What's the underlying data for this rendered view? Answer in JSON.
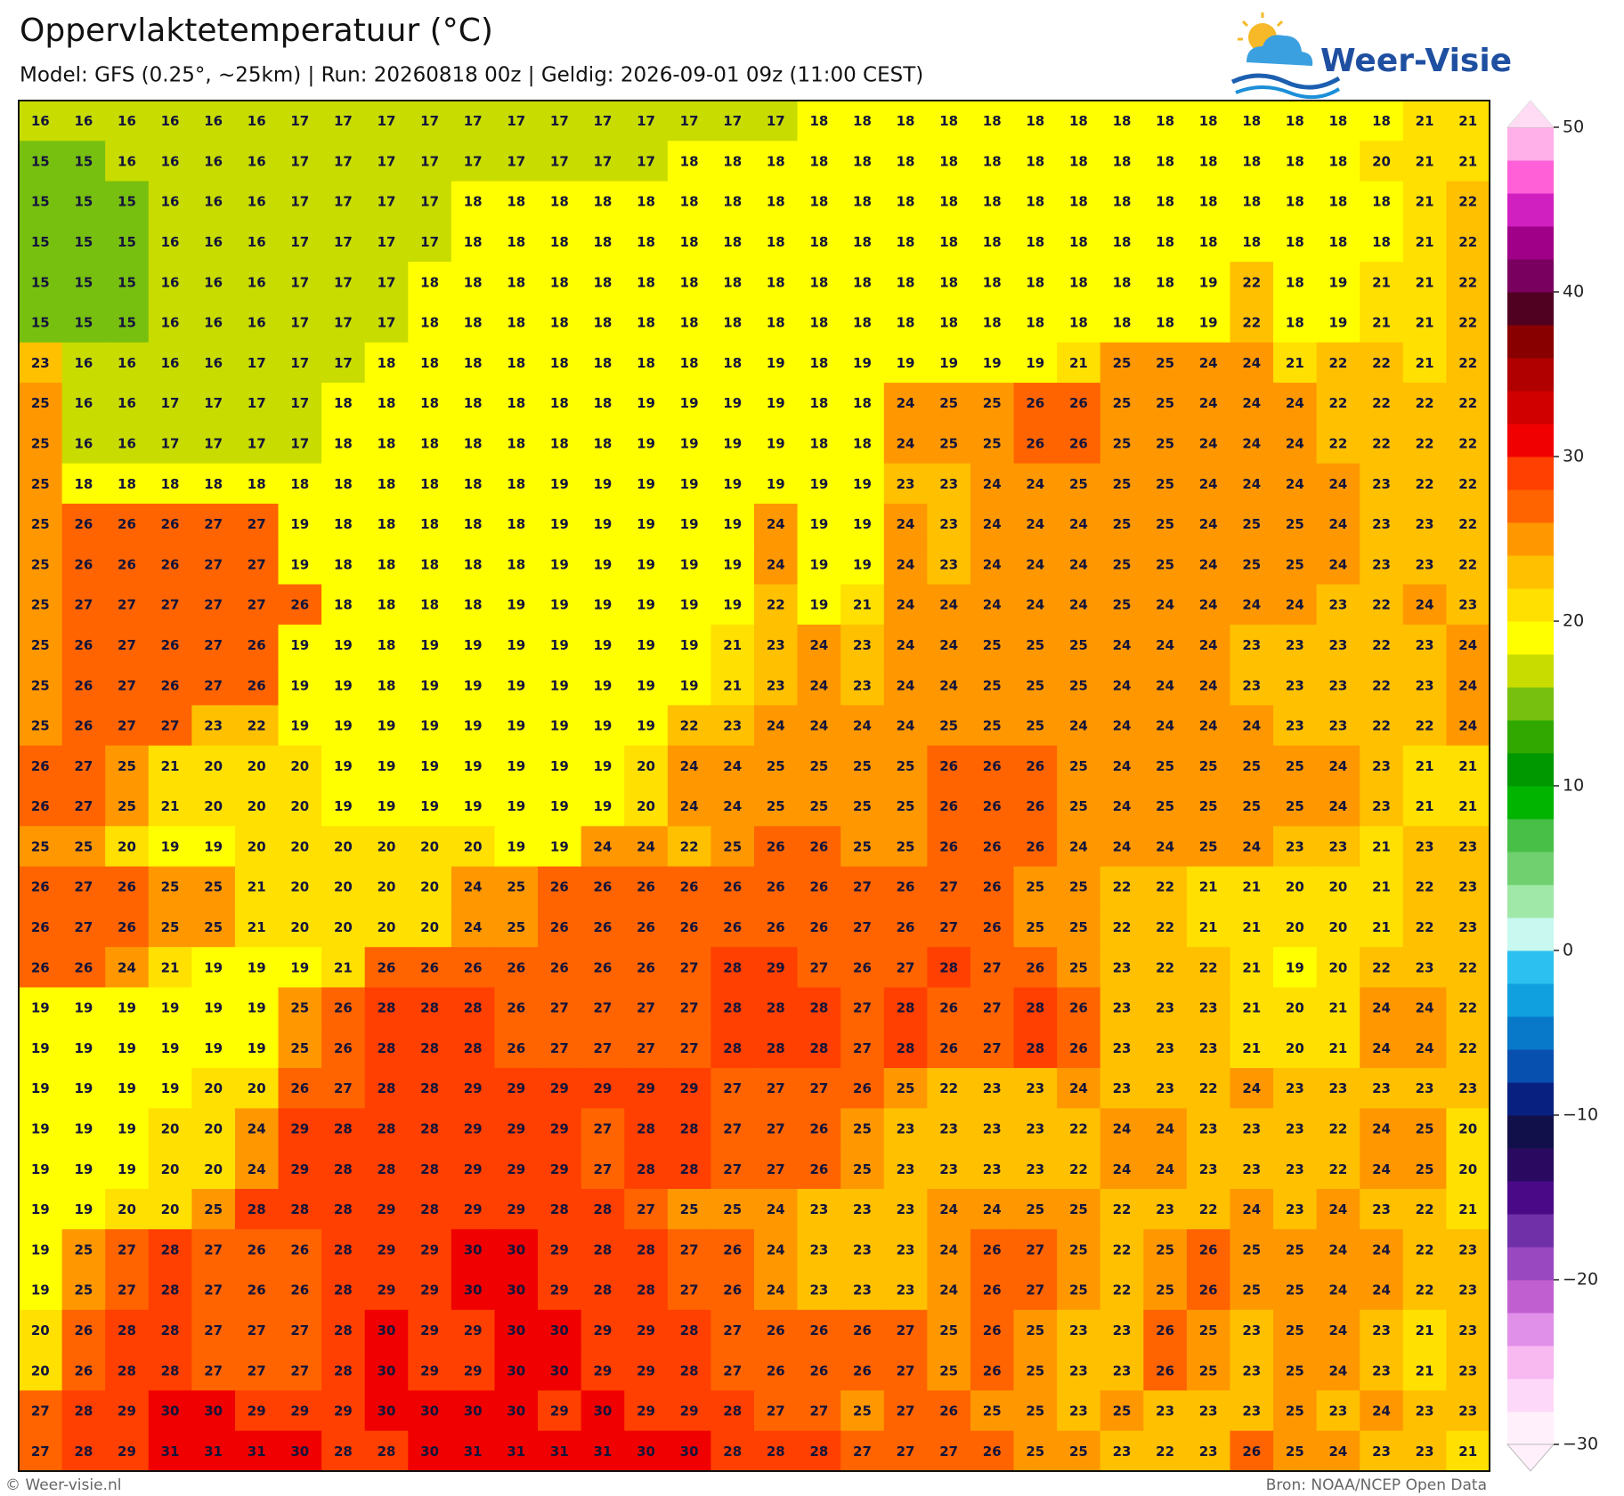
{
  "header": {
    "title": "Oppervlaktetemperatuur (°C)",
    "subtitle": "Model: GFS (0.25°, ~25km)  |  Run: 20260818 00z  |  Geldig: 2026-09-01 09z (11:00 CEST)"
  },
  "logo": {
    "text": "Weer-Visie"
  },
  "footer": {
    "left": "© Weer-visie.nl",
    "right": "Bron: NOAA/NCEP Open Data"
  },
  "colorbar": {
    "lim": [
      -30,
      50
    ],
    "colors": [
      "#fff0fc",
      "#fdd8f8",
      "#f8b8f0",
      "#e090e8",
      "#c060d0",
      "#9a48c0",
      "#7030a8",
      "#4a0a88",
      "#2a0a60",
      "#12104a",
      "#082080",
      "#0850b0",
      "#0878c8",
      "#10a0e0",
      "#2cc0f0",
      "#c8f8f0",
      "#a0e8a8",
      "#70d070",
      "#48c048",
      "#00b400",
      "#009800",
      "#30a800",
      "#78c010",
      "#c8dc00",
      "#ffff00",
      "#ffe000",
      "#ffc000",
      "#ff9800",
      "#ff6400",
      "#ff4000",
      "#f00000",
      "#d00000",
      "#b00000",
      "#880000",
      "#500020",
      "#7a0060",
      "#a00088",
      "#d020c0",
      "#ff60d8",
      "#ffb0e8"
    ],
    "ticks": [
      {
        "value": -30,
        "label": "−30"
      },
      {
        "value": -20,
        "label": "−20"
      },
      {
        "value": -10,
        "label": "−10"
      },
      0,
      10,
      20,
      30,
      40,
      50
    ]
  },
  "grid": {
    "values": [
      [
        16,
        16,
        16,
        16,
        16,
        16,
        17,
        17,
        17,
        17,
        17,
        17,
        17,
        17,
        17,
        17,
        17,
        17,
        18,
        18,
        18,
        18,
        18,
        18,
        18,
        18,
        18,
        18,
        18,
        18,
        18,
        18,
        21,
        21
      ],
      [
        15,
        15,
        16,
        16,
        16,
        16,
        17,
        17,
        17,
        17,
        17,
        17,
        17,
        17,
        17,
        18,
        18,
        18,
        18,
        18,
        18,
        18,
        18,
        18,
        18,
        18,
        18,
        18,
        18,
        18,
        18,
        20,
        21,
        21
      ],
      [
        15,
        15,
        15,
        16,
        16,
        16,
        17,
        17,
        17,
        17,
        18,
        18,
        18,
        18,
        18,
        18,
        18,
        18,
        18,
        18,
        18,
        18,
        18,
        18,
        18,
        18,
        18,
        18,
        18,
        18,
        18,
        18,
        21,
        22
      ],
      [
        15,
        15,
        15,
        16,
        16,
        16,
        17,
        17,
        17,
        17,
        18,
        18,
        18,
        18,
        18,
        18,
        18,
        18,
        18,
        18,
        18,
        18,
        18,
        18,
        18,
        18,
        18,
        18,
        18,
        18,
        18,
        18,
        21,
        22
      ],
      [
        15,
        15,
        15,
        16,
        16,
        16,
        17,
        17,
        17,
        18,
        18,
        18,
        18,
        18,
        18,
        18,
        18,
        18,
        18,
        18,
        18,
        18,
        18,
        18,
        18,
        18,
        18,
        19,
        22,
        18,
        19,
        21,
        21,
        22
      ],
      [
        15,
        15,
        15,
        16,
        16,
        16,
        17,
        17,
        17,
        18,
        18,
        18,
        18,
        18,
        18,
        18,
        18,
        18,
        18,
        18,
        18,
        18,
        18,
        18,
        18,
        18,
        18,
        19,
        22,
        18,
        19,
        21,
        21,
        22
      ],
      [
        23,
        16,
        16,
        16,
        16,
        17,
        17,
        17,
        18,
        18,
        18,
        18,
        18,
        18,
        18,
        18,
        18,
        19,
        18,
        19,
        19,
        19,
        19,
        19,
        21,
        25,
        25,
        24,
        24,
        21,
        22,
        22,
        21,
        22
      ],
      [
        25,
        16,
        16,
        17,
        17,
        17,
        17,
        18,
        18,
        18,
        18,
        18,
        18,
        18,
        19,
        19,
        19,
        19,
        18,
        18,
        24,
        25,
        25,
        26,
        26,
        25,
        25,
        24,
        24,
        24,
        22,
        22,
        22,
        22
      ],
      [
        25,
        16,
        16,
        17,
        17,
        17,
        17,
        18,
        18,
        18,
        18,
        18,
        18,
        18,
        19,
        19,
        19,
        19,
        18,
        18,
        24,
        25,
        25,
        26,
        26,
        25,
        25,
        24,
        24,
        24,
        22,
        22,
        22,
        22
      ],
      [
        25,
        18,
        18,
        18,
        18,
        18,
        18,
        18,
        18,
        18,
        18,
        18,
        19,
        19,
        19,
        19,
        19,
        19,
        19,
        19,
        23,
        23,
        24,
        24,
        25,
        25,
        25,
        24,
        24,
        24,
        24,
        23,
        22,
        22
      ],
      [
        25,
        26,
        26,
        26,
        27,
        27,
        19,
        18,
        18,
        18,
        18,
        18,
        19,
        19,
        19,
        19,
        19,
        24,
        19,
        19,
        24,
        23,
        24,
        24,
        24,
        25,
        25,
        24,
        25,
        25,
        24,
        23,
        23,
        22
      ],
      [
        25,
        26,
        26,
        26,
        27,
        27,
        19,
        18,
        18,
        18,
        18,
        18,
        19,
        19,
        19,
        19,
        19,
        24,
        19,
        19,
        24,
        23,
        24,
        24,
        24,
        25,
        25,
        24,
        25,
        25,
        24,
        23,
        23,
        22
      ],
      [
        25,
        27,
        27,
        27,
        27,
        27,
        26,
        18,
        18,
        18,
        18,
        19,
        19,
        19,
        19,
        19,
        19,
        22,
        19,
        21,
        24,
        24,
        24,
        24,
        24,
        25,
        24,
        24,
        24,
        24,
        23,
        22,
        24,
        23
      ],
      [
        25,
        26,
        27,
        26,
        27,
        26,
        19,
        19,
        18,
        19,
        19,
        19,
        19,
        19,
        19,
        19,
        21,
        23,
        24,
        23,
        24,
        24,
        25,
        25,
        25,
        24,
        24,
        24,
        23,
        23,
        23,
        22,
        23,
        24
      ],
      [
        25,
        26,
        27,
        26,
        27,
        26,
        19,
        19,
        18,
        19,
        19,
        19,
        19,
        19,
        19,
        19,
        21,
        23,
        24,
        23,
        24,
        24,
        25,
        25,
        25,
        24,
        24,
        24,
        23,
        23,
        23,
        22,
        23,
        24
      ],
      [
        25,
        26,
        27,
        27,
        23,
        22,
        19,
        19,
        19,
        19,
        19,
        19,
        19,
        19,
        19,
        22,
        23,
        24,
        24,
        24,
        24,
        25,
        25,
        25,
        24,
        24,
        24,
        24,
        24,
        23,
        23,
        22,
        22,
        24
      ],
      [
        26,
        27,
        25,
        21,
        20,
        20,
        20,
        19,
        19,
        19,
        19,
        19,
        19,
        19,
        20,
        24,
        24,
        25,
        25,
        25,
        25,
        26,
        26,
        26,
        25,
        24,
        25,
        25,
        25,
        25,
        24,
        23,
        21,
        21
      ],
      [
        26,
        27,
        25,
        21,
        20,
        20,
        20,
        19,
        19,
        19,
        19,
        19,
        19,
        19,
        20,
        24,
        24,
        25,
        25,
        25,
        25,
        26,
        26,
        26,
        25,
        24,
        25,
        25,
        25,
        25,
        24,
        23,
        21,
        21
      ],
      [
        25,
        25,
        20,
        19,
        19,
        20,
        20,
        20,
        20,
        20,
        20,
        19,
        19,
        24,
        24,
        22,
        25,
        26,
        26,
        25,
        25,
        26,
        26,
        26,
        24,
        24,
        24,
        25,
        24,
        23,
        23,
        21,
        23,
        23
      ],
      [
        26,
        27,
        26,
        25,
        25,
        21,
        20,
        20,
        20,
        20,
        24,
        25,
        26,
        26,
        26,
        26,
        26,
        26,
        26,
        27,
        26,
        27,
        26,
        25,
        25,
        22,
        22,
        21,
        21,
        20,
        20,
        21,
        22,
        23
      ],
      [
        26,
        27,
        26,
        25,
        25,
        21,
        20,
        20,
        20,
        20,
        24,
        25,
        26,
        26,
        26,
        26,
        26,
        26,
        26,
        27,
        26,
        27,
        26,
        25,
        25,
        22,
        22,
        21,
        21,
        20,
        20,
        21,
        22,
        23
      ],
      [
        26,
        26,
        24,
        21,
        19,
        19,
        19,
        21,
        26,
        26,
        26,
        26,
        26,
        26,
        26,
        27,
        28,
        29,
        27,
        26,
        27,
        28,
        27,
        26,
        25,
        23,
        22,
        22,
        21,
        19,
        20,
        22,
        23,
        22
      ],
      [
        19,
        19,
        19,
        19,
        19,
        19,
        25,
        26,
        28,
        28,
        28,
        26,
        27,
        27,
        27,
        27,
        28,
        28,
        28,
        27,
        28,
        26,
        27,
        28,
        26,
        23,
        23,
        23,
        21,
        20,
        21,
        24,
        24,
        22
      ],
      [
        19,
        19,
        19,
        19,
        19,
        19,
        25,
        26,
        28,
        28,
        28,
        26,
        27,
        27,
        27,
        27,
        28,
        28,
        28,
        27,
        28,
        26,
        27,
        28,
        26,
        23,
        23,
        23,
        21,
        20,
        21,
        24,
        24,
        22
      ],
      [
        19,
        19,
        19,
        19,
        20,
        20,
        26,
        27,
        28,
        28,
        29,
        29,
        29,
        29,
        29,
        29,
        27,
        27,
        27,
        26,
        25,
        22,
        23,
        23,
        24,
        23,
        23,
        22,
        24,
        23,
        23,
        23,
        23,
        23
      ],
      [
        19,
        19,
        19,
        20,
        20,
        24,
        29,
        28,
        28,
        28,
        29,
        29,
        29,
        27,
        28,
        28,
        27,
        27,
        26,
        25,
        23,
        23,
        23,
        23,
        22,
        24,
        24,
        23,
        23,
        23,
        22,
        24,
        25,
        20
      ],
      [
        19,
        19,
        19,
        20,
        20,
        24,
        29,
        28,
        28,
        28,
        29,
        29,
        29,
        27,
        28,
        28,
        27,
        27,
        26,
        25,
        23,
        23,
        23,
        23,
        22,
        24,
        24,
        23,
        23,
        23,
        22,
        24,
        25,
        20
      ],
      [
        19,
        19,
        20,
        20,
        25,
        28,
        28,
        28,
        29,
        28,
        29,
        29,
        28,
        28,
        27,
        25,
        25,
        24,
        23,
        23,
        23,
        24,
        24,
        25,
        25,
        22,
        23,
        22,
        24,
        23,
        24,
        23,
        22,
        21
      ],
      [
        19,
        25,
        27,
        28,
        27,
        26,
        26,
        28,
        29,
        29,
        30,
        30,
        29,
        28,
        28,
        27,
        26,
        24,
        23,
        23,
        23,
        24,
        26,
        27,
        25,
        22,
        25,
        26,
        25,
        25,
        24,
        24,
        22,
        23
      ],
      [
        19,
        25,
        27,
        28,
        27,
        26,
        26,
        28,
        29,
        29,
        30,
        30,
        29,
        28,
        28,
        27,
        26,
        24,
        23,
        23,
        23,
        24,
        26,
        27,
        25,
        22,
        25,
        26,
        25,
        25,
        24,
        24,
        22,
        23
      ],
      [
        20,
        26,
        28,
        28,
        27,
        27,
        27,
        28,
        30,
        29,
        29,
        30,
        30,
        29,
        29,
        28,
        27,
        26,
        26,
        26,
        27,
        25,
        26,
        25,
        23,
        23,
        26,
        25,
        23,
        25,
        24,
        23,
        21,
        23
      ],
      [
        20,
        26,
        28,
        28,
        27,
        27,
        27,
        28,
        30,
        29,
        29,
        30,
        30,
        29,
        29,
        28,
        27,
        26,
        26,
        26,
        27,
        25,
        26,
        25,
        23,
        23,
        26,
        25,
        23,
        25,
        24,
        23,
        21,
        23
      ],
      [
        27,
        28,
        29,
        30,
        30,
        29,
        29,
        29,
        30,
        30,
        30,
        30,
        29,
        30,
        29,
        29,
        28,
        27,
        27,
        25,
        27,
        26,
        25,
        25,
        23,
        25,
        23,
        23,
        23,
        25,
        23,
        24,
        23,
        23
      ],
      [
        27,
        28,
        29,
        31,
        31,
        31,
        30,
        28,
        28,
        30,
        31,
        31,
        31,
        31,
        30,
        30,
        28,
        28,
        28,
        27,
        27,
        27,
        26,
        25,
        25,
        23,
        22,
        23,
        26,
        25,
        24,
        23,
        23,
        21
      ]
    ]
  }
}
